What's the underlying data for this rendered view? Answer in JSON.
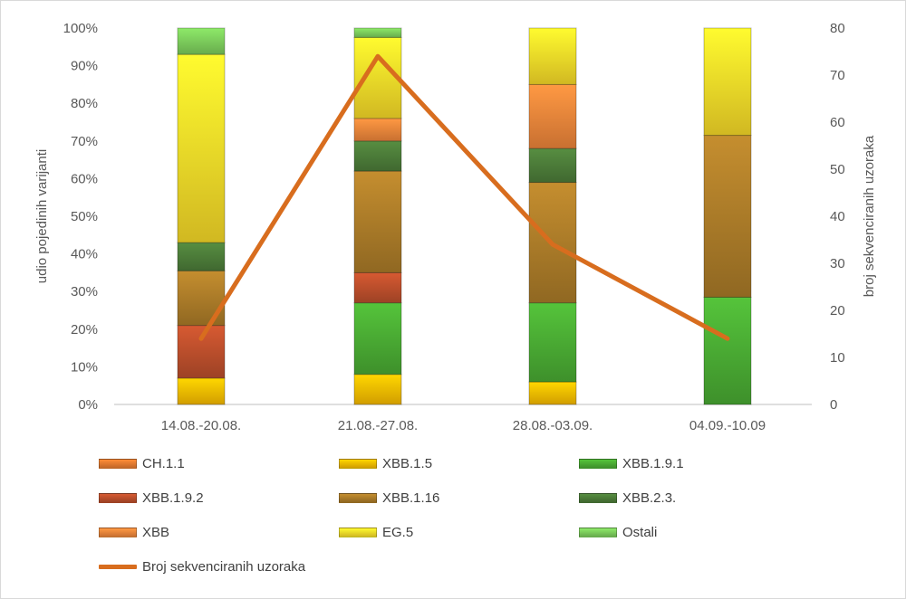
{
  "chart_data": {
    "type": "bar",
    "stacked": true,
    "categories": [
      "14.08.-20.08.",
      "21.08.-27.08.",
      "28.08.-03.09.",
      "04.09.-10.09"
    ],
    "ylabel": "udio pojedinih varijanti",
    "y2label": "broj sekvenciranih uzoraka",
    "ylim": [
      0,
      100
    ],
    "y2lim": [
      0,
      80
    ],
    "y_ticks": [
      "0%",
      "10%",
      "20%",
      "30%",
      "40%",
      "50%",
      "60%",
      "70%",
      "80%",
      "90%",
      "100%"
    ],
    "y2_ticks": [
      "0",
      "10",
      "20",
      "30",
      "40",
      "50",
      "60",
      "70",
      "80"
    ],
    "grid": false,
    "legend_position": "bottom",
    "series": [
      {
        "name": "CH.1.1",
        "color": "#ed7d31",
        "values": [
          0,
          0,
          0,
          0
        ]
      },
      {
        "name": "XBB.1.5",
        "color": "#ffc000",
        "values": [
          7,
          8,
          6,
          0
        ]
      },
      {
        "name": "XBB.1.9.1",
        "color": "#4caf35",
        "values": [
          0,
          19,
          21,
          28.5
        ]
      },
      {
        "name": "XBB.1.9.2",
        "color": "#c0502d",
        "values": [
          14,
          8,
          0,
          0
        ]
      },
      {
        "name": "XBB.1.16",
        "color": "#b07f2a",
        "values": [
          14.5,
          27,
          32,
          43
        ]
      },
      {
        "name": "XBB.2.3.",
        "color": "#4e7f3a",
        "values": [
          7.5,
          8,
          9,
          0
        ]
      },
      {
        "name": "XBB",
        "color": "#f4893c",
        "values": [
          0,
          6,
          17,
          0
        ]
      },
      {
        "name": "EG.5",
        "color": "#ffe02a",
        "values": [
          50,
          21.5,
          15,
          28.5
        ]
      },
      {
        "name": "Ostali",
        "color": "#7fd15e",
        "values": [
          7,
          2.5,
          0,
          0
        ]
      }
    ],
    "line_series": {
      "name": "Broj sekvenciranih uzoraka",
      "color": "#d86d1e",
      "axis": "right",
      "values": [
        14,
        74,
        34,
        14
      ]
    }
  }
}
